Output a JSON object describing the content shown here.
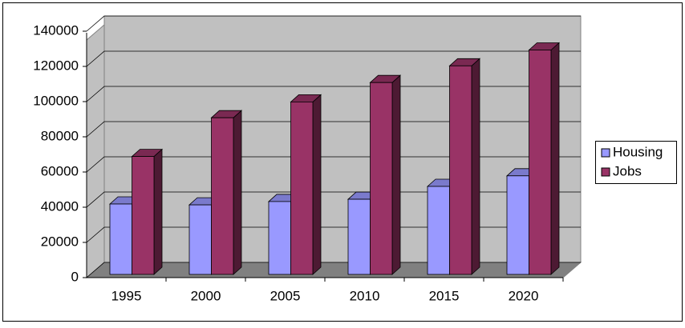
{
  "chart_data": {
    "type": "bar3d",
    "categories": [
      "1995",
      "2000",
      "2005",
      "2010",
      "2015",
      "2020"
    ],
    "series": [
      {
        "name": "Housing",
        "color": "#9999ff",
        "values": [
          40000,
          39500,
          41400,
          42700,
          50000,
          56000
        ]
      },
      {
        "name": "Jobs",
        "color": "#993366",
        "values": [
          67000,
          89000,
          98000,
          109000,
          118500,
          127500
        ]
      }
    ],
    "ylim": [
      0,
      140000
    ],
    "yticks": [
      0,
      20000,
      40000,
      60000,
      80000,
      100000,
      120000,
      140000
    ],
    "grid": true,
    "legend": "right"
  }
}
